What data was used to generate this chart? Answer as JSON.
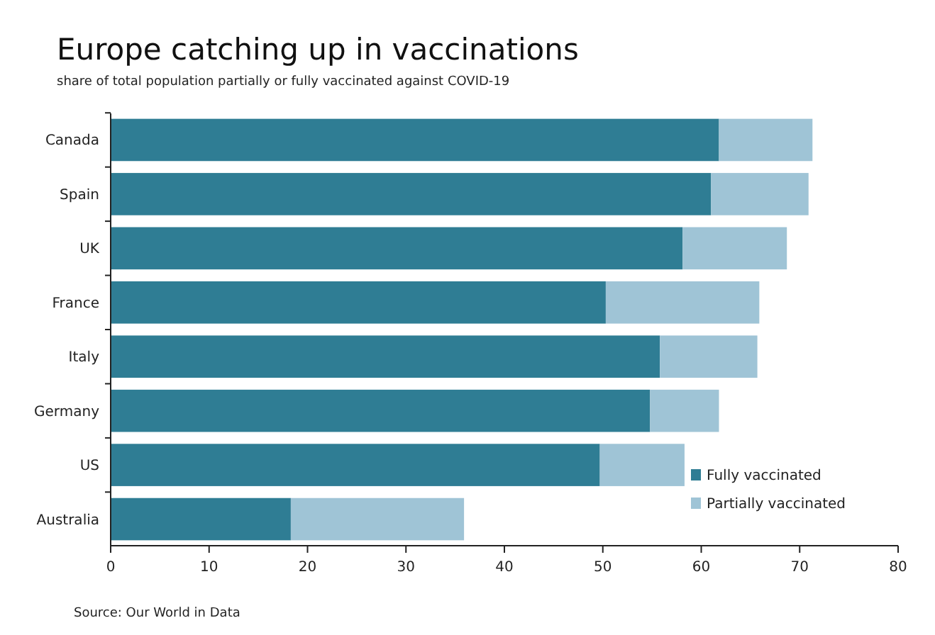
{
  "chart_data": {
    "type": "bar",
    "orientation": "horizontal",
    "stacked": true,
    "title": "Europe catching up in vaccinations",
    "subtitle": "share of total population partially or fully vaccinated against COVID-19",
    "categories": [
      "Canada",
      "Spain",
      "UK",
      "France",
      "Italy",
      "Germany",
      "US",
      "Australia"
    ],
    "series": [
      {
        "name": "Fully vaccinated",
        "color": "#2f7d94",
        "values": [
          61.8,
          61.0,
          58.1,
          50.3,
          55.8,
          54.8,
          49.7,
          18.3
        ]
      },
      {
        "name": "Partially vaccinated",
        "color": "#9fc4d6",
        "values": [
          9.5,
          9.9,
          10.6,
          15.6,
          9.9,
          7.0,
          8.6,
          17.6
        ]
      }
    ],
    "xlim": [
      0,
      80
    ],
    "xticks": [
      0,
      10,
      20,
      30,
      40,
      50,
      60,
      70,
      80
    ],
    "legend": "bottom right",
    "annotations": [
      "Source: Our World in Data"
    ]
  }
}
